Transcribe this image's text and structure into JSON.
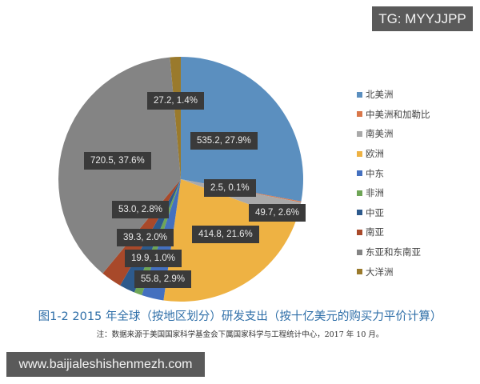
{
  "watermarks": {
    "top_right": "TG: MYYJJPP",
    "bottom_left": "www.baijialeshishenmezh.com"
  },
  "chart_data": {
    "type": "pie",
    "title": "图1-2   2015 年全球（按地区划分）研发支出（按十亿美元的购买力平价计算）",
    "note": "注：数据来源于美国国家科学基金会下属国家科学与工程统计中心，2017 年 10 月。",
    "start_angle": "top, clockwise",
    "legend_position": "right",
    "slices": [
      {
        "name": "北美洲",
        "value": 535.2,
        "percent": 27.9,
        "label": "535.2, 27.9%",
        "color": "#5b8fbf"
      },
      {
        "name": "中美洲和加勒比",
        "value": 2.5,
        "percent": 0.1,
        "label": "2.5, 0.1%",
        "color": "#d9774a"
      },
      {
        "name": "南美洲",
        "value": 49.7,
        "percent": 2.6,
        "label": "49.7, 2.6%",
        "color": "#a9a9a9"
      },
      {
        "name": "欧洲",
        "value": 414.8,
        "percent": 21.6,
        "label": "414.8, 21.6%",
        "color": "#eeb243"
      },
      {
        "name": "中东",
        "value": 55.8,
        "percent": 2.9,
        "label": "55.8, 2.9%",
        "color": "#4470bf"
      },
      {
        "name": "非洲",
        "value": 19.9,
        "percent": 1.0,
        "label": "19.9, 1.0%",
        "color": "#6ea556"
      },
      {
        "name": "中亚",
        "value": 39.3,
        "percent": 2.0,
        "label": "39.3, 2.0%",
        "color": "#2d5a8c"
      },
      {
        "name": "南亚",
        "value": 53.0,
        "percent": 2.8,
        "label": "53.0, 2.8%",
        "color": "#a8492a"
      },
      {
        "name": "东亚和东南亚",
        "value": 720.5,
        "percent": 37.6,
        "label": "720.5, 37.6%",
        "color": "#848484"
      },
      {
        "name": "大洋洲",
        "value": 27.2,
        "percent": 1.4,
        "label": "27.2, 1.4%",
        "color": "#9a7a2c"
      }
    ],
    "legend": [
      "北美洲",
      "中美洲和加勒比",
      "南美洲",
      "欧洲",
      "中东",
      "非洲",
      "中亚",
      "南亚",
      "东亚和东南亚",
      "大洋洲"
    ]
  }
}
